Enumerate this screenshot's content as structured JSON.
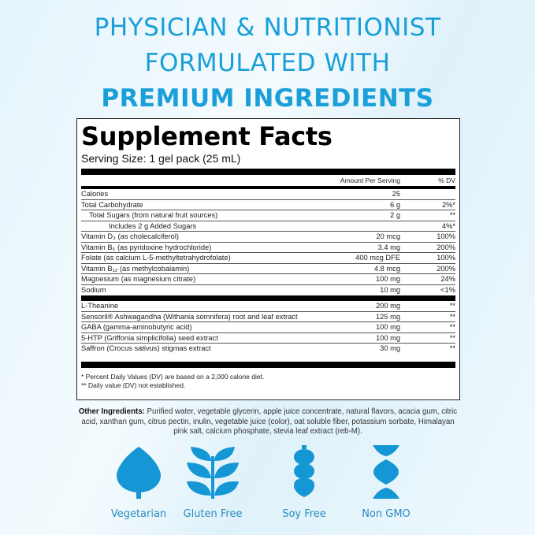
{
  "headline": {
    "line1": "PHYSICIAN & NUTRITIONIST",
    "line2": "FORMULATED WITH",
    "line3": "PREMIUM INGREDIENTS"
  },
  "facts": {
    "title": "Supplement Facts",
    "serving_size": "Serving Size: 1 gel pack (25 mL)",
    "col_amount": "Amount Per Serving",
    "col_dv": "% DV",
    "nutrients": [
      {
        "name": "Calories",
        "amount": "25",
        "dv": ""
      },
      {
        "name": "Total Carbohydrate",
        "amount": "6 g",
        "dv": "2%*"
      },
      {
        "name": "Total Sugars (from natural fruit sources)",
        "amount": "2 g",
        "dv": "**"
      },
      {
        "name": "Includes 2 g Added Sugars",
        "amount": "",
        "dv": "4%*"
      },
      {
        "name": "Vitamin D₃ (as cholecalciferol)",
        "amount": "20 mcg",
        "dv": "100%"
      },
      {
        "name": "Vitamin B₆ (as pyridoxine hydrochloride)",
        "amount": "3.4 mg",
        "dv": "200%"
      },
      {
        "name": "Folate (as calcium L-5-methyltetrahydrofolate)",
        "amount": "400 mcg DFE",
        "dv": "100%"
      },
      {
        "name": "Vitamin B₁₂ (as methylcobalamin)",
        "amount": "4.8 mcg",
        "dv": "200%"
      },
      {
        "name": "Magnesium (as magnesium citrate)",
        "amount": "100 mg",
        "dv": "24%"
      },
      {
        "name": "Sodium",
        "amount": "10 mg",
        "dv": "<1%"
      }
    ],
    "other": [
      {
        "name": "L-Theanine",
        "amount": "200 mg",
        "dv": "**"
      },
      {
        "name": "Sensoril® Ashwagandha (Withania somnifera) root and leaf extract",
        "amount": "125 mg",
        "dv": "**"
      },
      {
        "name": "GABA (gamma-aminobutyric acid)",
        "amount": "100 mg",
        "dv": "**"
      },
      {
        "name": "5-HTP (Griffonia simplicifolia) seed extract",
        "amount": "100 mg",
        "dv": "**"
      },
      {
        "name": "Saffron (Crocus sativus) stigmas extract",
        "amount": "30 mg",
        "dv": "**"
      }
    ],
    "footnote1": "* Percent Daily Values (DV) are based on a 2,000 calorie diet.",
    "footnote2": "** Daily value (DV) not established."
  },
  "other_ingredients": {
    "label": "Other Ingredients:",
    "text": " Purified water, vegetable glycerin, apple juice concentrate, natural flavors, acacia gum, citric acid, xanthan gum, citrus pectin, inulin, vegetable juice (color), oat soluble fiber, potassium sorbate, Himalayan pink salt, calcium phosphate, stevia leaf extract (reb-M)."
  },
  "badges": [
    {
      "label": "Vegetarian",
      "icon": "leaf-icon"
    },
    {
      "label": "Gluten Free",
      "icon": "wheat-icon"
    },
    {
      "label": "Soy Free",
      "icon": "soybean-icon"
    },
    {
      "label": "Non GMO",
      "icon": "dna-icon"
    }
  ],
  "accent": "#1a9fd9"
}
